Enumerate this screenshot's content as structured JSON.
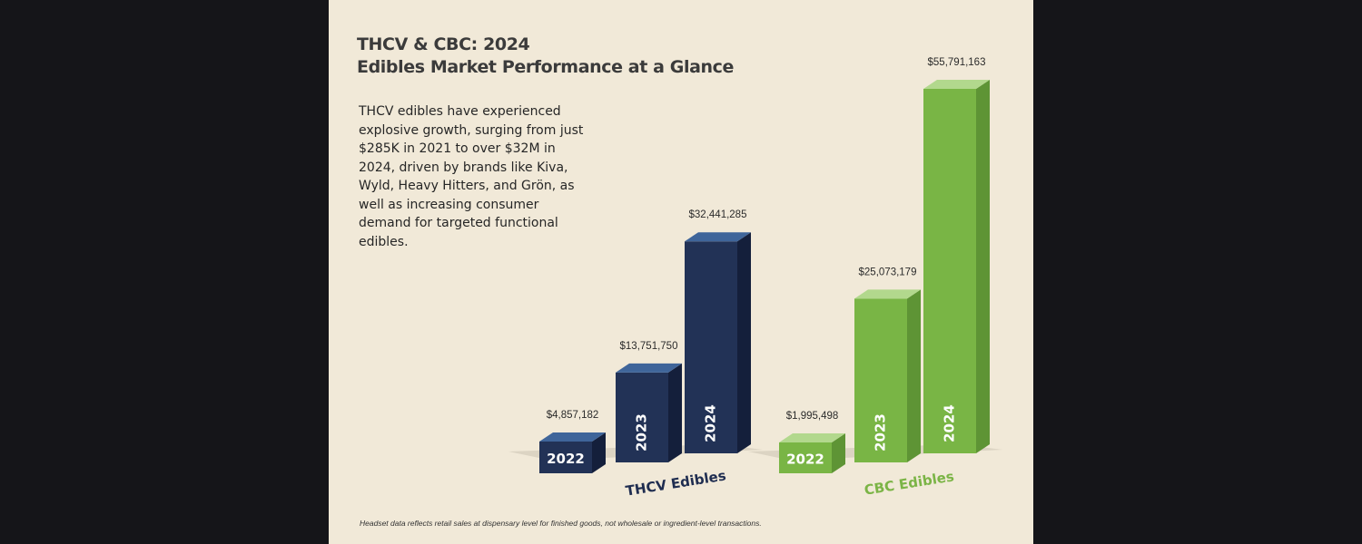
{
  "title_line1": "THCV & CBC: 2024",
  "title_line2": "Edibles Market Performance at a Glance",
  "description": "THCV edibles have experienced explosive growth, surging from just $285K in 2021 to over $32M in 2024, driven by brands like Kiva, Wyld, Heavy Hitters, and Grön, as well as increasing consumer demand for targeted functional edibles.",
  "footnote": "Headset data reflects retail sales at dispensary level for finished goods, not wholesale or ingredient-level transactions.",
  "colors": {
    "thcv_front": "#223256",
    "thcv_side": "#141f3b",
    "thcv_top": "#3f659a",
    "thcv_label": "#1f2d50",
    "cbc_front": "#79b545",
    "cbc_side": "#5e9435",
    "cbc_top": "#b2d88d",
    "cbc_label": "#7bb446"
  },
  "chart_data": {
    "type": "bar",
    "title": "THCV & CBC: 2024 Edibles Market Performance at a Glance",
    "categories": [
      "2022",
      "2023",
      "2024"
    ],
    "series": [
      {
        "name": "THCV Edibles",
        "values": [
          4857182,
          13751750,
          32441285
        ],
        "labels": [
          "$4,857,182",
          "$13,751,750",
          "$32,441,285"
        ]
      },
      {
        "name": "CBC Edibles",
        "values": [
          1995498,
          25073179,
          55791163
        ],
        "labels": [
          "$1,995,498",
          "$25,073,179",
          "$55,791,163"
        ]
      }
    ],
    "xlabel": "",
    "ylabel": "",
    "grid": false,
    "legend": "none"
  }
}
